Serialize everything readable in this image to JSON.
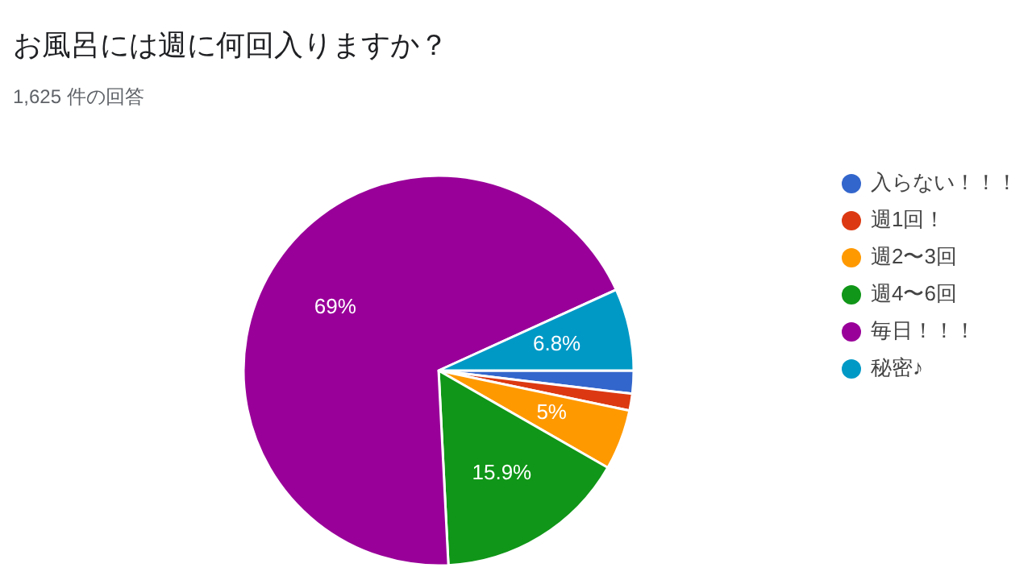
{
  "chart_data": {
    "type": "pie",
    "title": "お風呂には週に何回入りますか？",
    "subtitle": "1,625 件の回答",
    "categories": [
      "入らない！！！",
      "週1回！",
      "週2〜3回",
      "週4〜6回",
      "毎日！！！",
      "秘密♪"
    ],
    "values": [
      1.9,
      1.4,
      5,
      15.9,
      69,
      6.8
    ],
    "colors": [
      "#3366cc",
      "#dc3912",
      "#ff9900",
      "#109618",
      "#990099",
      "#0099c6"
    ],
    "value_labels": [
      null,
      null,
      "5%",
      "15.9%",
      "69%",
      "6.8%"
    ],
    "legend": "right"
  }
}
